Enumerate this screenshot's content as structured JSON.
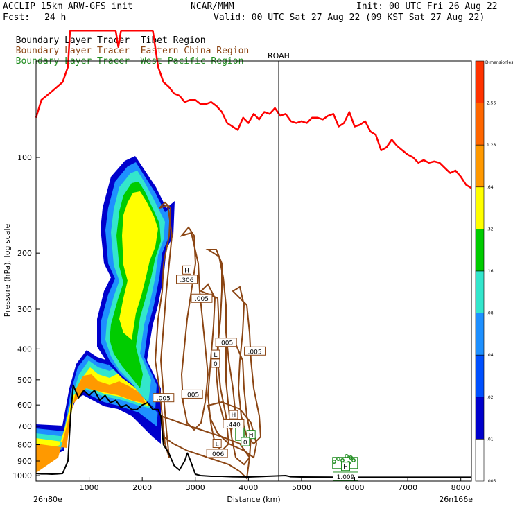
{
  "header": {
    "model": "ACCLIP 15km ARW-GFS init",
    "center": "NCAR/MMM",
    "init": "Init: 00 UTC Fri 26 Aug 22",
    "fcst_label": "Fcst:",
    "fcst_value": "24 h",
    "valid": "Valid: 00 UTC Sat 27 Aug 22 (09 KST Sat 27 Aug 22)"
  },
  "legend": [
    {
      "name_a": "Boundary Layer Tracer",
      "name_b": "Tibet Region",
      "color": "#000000"
    },
    {
      "name_a": "Boundary Layer Tracer",
      "name_b": "Eastern China Region",
      "color": "#8B4513"
    },
    {
      "name_a": "Boundary Layer Tracer",
      "name_b": "West Pacific Region",
      "color": "#1E8C1E"
    }
  ],
  "marker_label": "ROAH",
  "chart_data": {
    "type": "cross-section",
    "xlabel": "Distance (km)",
    "ylabel": "Pressure (hPa), log scale",
    "x_ticks": [
      1000,
      2000,
      3000,
      4000,
      5000,
      6000,
      7000,
      8000
    ],
    "x_range": [
      0,
      8200
    ],
    "y_ticks": [
      100,
      200,
      300,
      400,
      500,
      600,
      700,
      800,
      900,
      1000
    ],
    "y_scale": "log",
    "x_left_label": "26n80e",
    "x_right_label": "26n166e",
    "vertical_marker_km": 4570,
    "colorbar": {
      "title": "Dimensionless",
      "levels": [
        "2.56",
        "1.28",
        ".64",
        ".32",
        ".16",
        ".08",
        ".04",
        ".02",
        ".01",
        ".005"
      ],
      "colors": [
        "#FF3300",
        "#FF6600",
        "#FF9900",
        "#FFFF00",
        "#00CC00",
        "#33E6CC",
        "#1E90FF",
        "#0050FF",
        "#0000CC",
        "#FFFFFF"
      ]
    },
    "contour_labels": [
      {
        "text": "H",
        "km": 2840,
        "p": 228,
        "color": "#8B4513"
      },
      {
        "text": ".306",
        "km": 2840,
        "p": 244,
        "color": "#8B4513"
      },
      {
        "text": ".005",
        "km": 3120,
        "p": 280,
        "color": "#8B4513"
      },
      {
        "text": ".005",
        "km": 3580,
        "p": 385,
        "color": "#8B4513"
      },
      {
        "text": ".005",
        "km": 4120,
        "p": 410,
        "color": "#8B4513"
      },
      {
        "text": "L",
        "km": 3380,
        "p": 420,
        "color": "#8B4513"
      },
      {
        "text": "0",
        "km": 3380,
        "p": 448,
        "color": "#8B4513"
      },
      {
        "text": ".005",
        "km": 2940,
        "p": 560,
        "color": "#8B4513"
      },
      {
        "text": ".005",
        "km": 2400,
        "p": 575,
        "color": "#8B4513"
      },
      {
        "text": "H",
        "km": 3720,
        "p": 650,
        "color": "#8B4513"
      },
      {
        "text": ".440",
        "km": 3720,
        "p": 695,
        "color": "#8B4513"
      },
      {
        "text": "L",
        "km": 3410,
        "p": 800,
        "color": "#8B4513"
      },
      {
        "text": ".006",
        "km": 3410,
        "p": 860,
        "color": "#8B4513"
      },
      {
        "text": "H",
        "km": 4050,
        "p": 750,
        "color": "#1E8C1E"
      },
      {
        "text": "0",
        "km": 3940,
        "p": 790,
        "color": "#1E8C1E"
      },
      {
        "text": "H",
        "km": 5830,
        "p": 945,
        "color": "#1E8C1E"
      },
      {
        "text": "1.009",
        "km": 5830,
        "p": 1015,
        "color": "#1E8C1E"
      }
    ],
    "tropopause_red": {
      "km": [
        0,
        100,
        300,
        500,
        600,
        640,
        680,
        900,
        1100,
        1300,
        1500,
        1550,
        1600,
        1700,
        1900,
        2000,
        2100,
        2200,
        2300,
        2400,
        2500,
        2600,
        2700,
        2800,
        2900,
        3000,
        3100,
        3200,
        3300,
        3400,
        3500,
        3600,
        3700,
        3800,
        3900,
        4000,
        4100,
        4200,
        4300,
        4400,
        4500,
        4600,
        4700,
        4800,
        4900,
        5000,
        5100,
        5200,
        5300,
        5400,
        5500,
        5600,
        5700,
        5800,
        5900,
        6000,
        6100,
        6200,
        6300,
        6400,
        6500,
        6600,
        6700,
        6800,
        6900,
        7000,
        7100,
        7200,
        7300,
        7400,
        7500,
        7600,
        7700,
        7800,
        7900,
        8000,
        8100,
        8200
      ],
      "p": [
        75,
        66,
        62,
        58,
        52,
        40,
        40,
        40,
        40,
        40,
        40,
        45,
        40,
        40,
        40,
        40,
        40,
        40,
        52,
        58,
        60,
        63,
        64,
        67,
        66,
        66,
        68,
        68,
        67,
        69,
        72,
        78,
        80,
        82,
        75,
        78,
        73,
        76,
        72,
        73,
        70,
        74,
        73,
        77,
        78,
        77,
        78,
        75,
        75,
        76,
        74,
        73,
        80,
        78,
        72,
        80,
        79,
        77,
        83,
        85,
        95,
        93,
        88,
        92,
        95,
        98,
        100,
        104,
        102,
        104,
        103,
        104,
        108,
        112,
        110,
        115,
        122,
        125
      ]
    },
    "terrain_black": {
      "km": [
        0,
        100,
        200,
        300,
        400,
        500,
        600,
        650,
        700,
        800,
        900,
        1000,
        1100,
        1200,
        1300,
        1400,
        1500,
        1600,
        1700,
        1800,
        1900,
        2000,
        2100,
        2200,
        2300,
        2350,
        2400,
        2500,
        2600,
        2700,
        2800,
        2850,
        2900,
        3000,
        3100,
        3300,
        3500,
        3700,
        4000,
        4700,
        4800,
        5000,
        6000,
        7000,
        8000,
        8200
      ],
      "p": [
        985,
        988,
        988,
        990,
        988,
        985,
        900,
        650,
        520,
        570,
        540,
        560,
        540,
        580,
        560,
        590,
        580,
        610,
        600,
        620,
        620,
        600,
        590,
        620,
        620,
        650,
        800,
        850,
        930,
        960,
        900,
        850,
        890,
        990,
        1000,
        1005,
        1005,
        1008,
        1010,
        1000,
        1008,
        1010,
        1012,
        1012,
        1012,
        1012
      ]
    }
  }
}
